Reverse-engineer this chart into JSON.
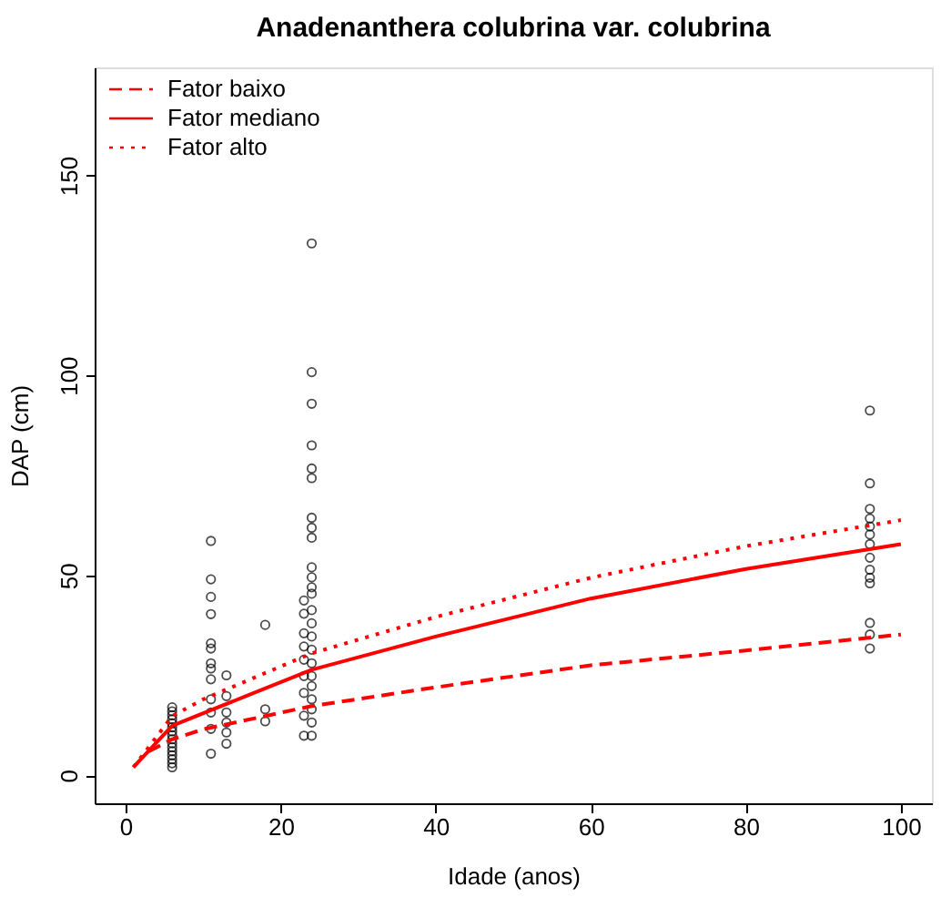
{
  "chart_data": {
    "type": "scatter",
    "title": "Anadenanthera colubrina var. colubrina",
    "xlabel": "Idade (anos)",
    "ylabel": "DAP (cm)",
    "xlim": [
      -4,
      104
    ],
    "ylim": [
      -7,
      177
    ],
    "xticks": [
      0,
      20,
      40,
      60,
      80,
      100
    ],
    "yticks": [
      0,
      50,
      100,
      150
    ],
    "grid": false,
    "legend": "top left",
    "series": [
      {
        "color": "#000000",
        "marker": "circle",
        "x": [
          6,
          6,
          6,
          6,
          6,
          6,
          6,
          6,
          6,
          6,
          6,
          6,
          6,
          6,
          6,
          6,
          11,
          11,
          11,
          11,
          11,
          11,
          11,
          11,
          11,
          11,
          11,
          11,
          11,
          13,
          13,
          13,
          13,
          13,
          13,
          18,
          18,
          18,
          23,
          23,
          23,
          23,
          23,
          23,
          23,
          23,
          23,
          24,
          24,
          24,
          24,
          24,
          24,
          24,
          24,
          24,
          24,
          24,
          24,
          24,
          24,
          24,
          24,
          24,
          24,
          24,
          24,
          24,
          24,
          24,
          24,
          96,
          96,
          96,
          96,
          96,
          96,
          96,
          96,
          96,
          96,
          96,
          96,
          96,
          96
        ],
        "values": [
          2,
          3,
          4,
          5,
          6,
          7,
          8,
          9,
          10,
          11,
          12,
          13,
          14,
          15,
          16,
          17,
          58.6,
          49,
          44.6,
          40.3,
          33,
          31.7,
          28,
          26.7,
          24,
          19,
          15.7,
          11.6,
          5.4,
          25,
          19.8,
          15.7,
          13.2,
          10.7,
          7.9,
          37.6,
          16.5,
          13.5,
          43.7,
          40.4,
          35.5,
          32.2,
          28.9,
          24.8,
          20.6,
          14.9,
          9.9,
          133,
          100.8,
          92.9,
          82.5,
          76.7,
          74.3,
          64.4,
          61.9,
          59.4,
          52,
          49.5,
          47,
          45.4,
          41.3,
          38,
          34.7,
          31.4,
          28,
          24.8,
          22.3,
          19,
          16.5,
          13.2,
          9.9,
          91.2,
          73,
          66.6,
          64.2,
          62.2,
          60.2,
          57.8,
          54.4,
          51.4,
          49.4,
          48,
          38.1,
          35.2,
          31.7
        ]
      },
      {
        "type": "line",
        "name": "Fator baixo",
        "color": "#ff0000",
        "line_style": "dashed",
        "x": [
          3,
          6,
          10,
          24,
          40,
          60,
          80,
          100
        ],
        "values": [
          6,
          9,
          11.5,
          17.3,
          22,
          27.5,
          31.2,
          35.2
        ]
      },
      {
        "type": "line",
        "name": "Fator mediano",
        "color": "#ff0000",
        "line_style": "solid",
        "x": [
          1,
          6,
          24,
          40,
          60,
          80,
          100
        ],
        "values": [
          2,
          12.4,
          26.4,
          34.7,
          44.2,
          51.6,
          57.8
        ]
      },
      {
        "type": "line",
        "name": "Fator alto",
        "color": "#ff0000",
        "line_style": "dotted",
        "x": [
          1,
          6,
          10,
          24,
          40,
          60,
          80,
          100
        ],
        "values": [
          2,
          14.8,
          19,
          30.5,
          39.6,
          49.4,
          57.3,
          63.8
        ]
      }
    ]
  }
}
